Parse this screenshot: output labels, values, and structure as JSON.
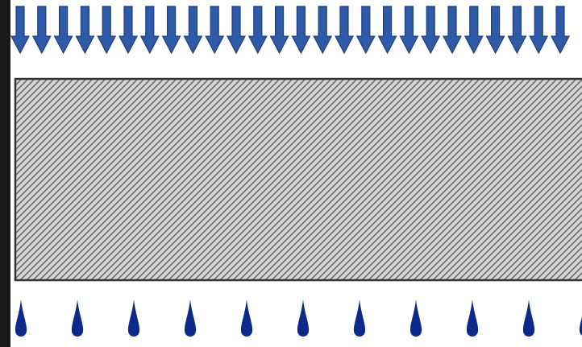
{
  "diagram": {
    "pressure_arrows": {
      "count": 26,
      "icon": "down-arrow-icon",
      "color": "#2e5aa8",
      "outline": "#1f3f7a"
    },
    "porous_layer": {
      "pattern": "diagonal-hatch",
      "fill": "#d6d6d6",
      "hatch_color": "#6a6a6a",
      "border": "#333333"
    },
    "drops": {
      "count": 11,
      "icon": "water-drop-icon",
      "color": "#0d2a8a"
    },
    "frame": {
      "background": "#ffffff",
      "border_color": "#1a1a1a"
    }
  }
}
